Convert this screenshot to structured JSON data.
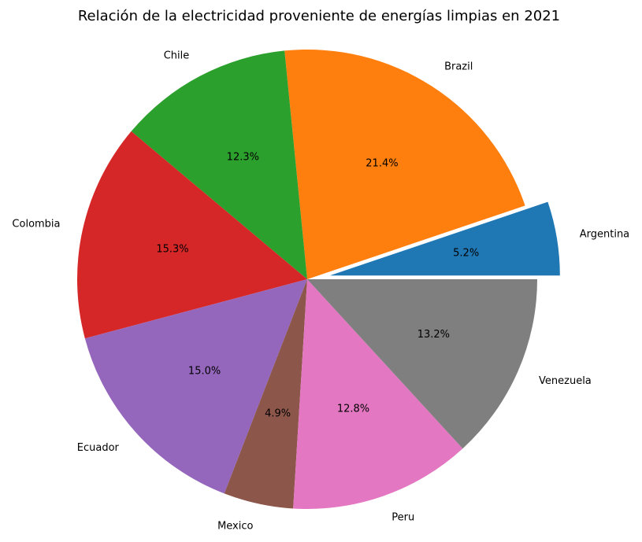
{
  "chart_data": {
    "type": "pie",
    "title": "Relación de la electricidad proveniente de energías limpias en 2021",
    "slices": [
      {
        "label": "Argentina",
        "value": 5.2,
        "pct_text": "5.2%",
        "color": "#1f77b4",
        "explode": true
      },
      {
        "label": "Brazil",
        "value": 21.4,
        "pct_text": "21.4%",
        "color": "#ff7f0e",
        "explode": false
      },
      {
        "label": "Chile",
        "value": 12.3,
        "pct_text": "12.3%",
        "color": "#2ca02c",
        "explode": false
      },
      {
        "label": "Colombia",
        "value": 15.3,
        "pct_text": "15.3%",
        "color": "#d62728",
        "explode": false
      },
      {
        "label": "Ecuador",
        "value": 15.0,
        "pct_text": "15.0%",
        "color": "#9467bd",
        "explode": false
      },
      {
        "label": "Mexico",
        "value": 4.9,
        "pct_text": "4.9%",
        "color": "#8c564b",
        "explode": false
      },
      {
        "label": "Peru",
        "value": 12.8,
        "pct_text": "12.8%",
        "color": "#e377c2",
        "explode": false
      },
      {
        "label": "Venezuela",
        "value": 13.2,
        "pct_text": "13.2%",
        "color": "#7f7f7f",
        "explode": false
      }
    ],
    "start_angle_deg": 0,
    "direction": "counterclockwise",
    "legend": "none"
  }
}
